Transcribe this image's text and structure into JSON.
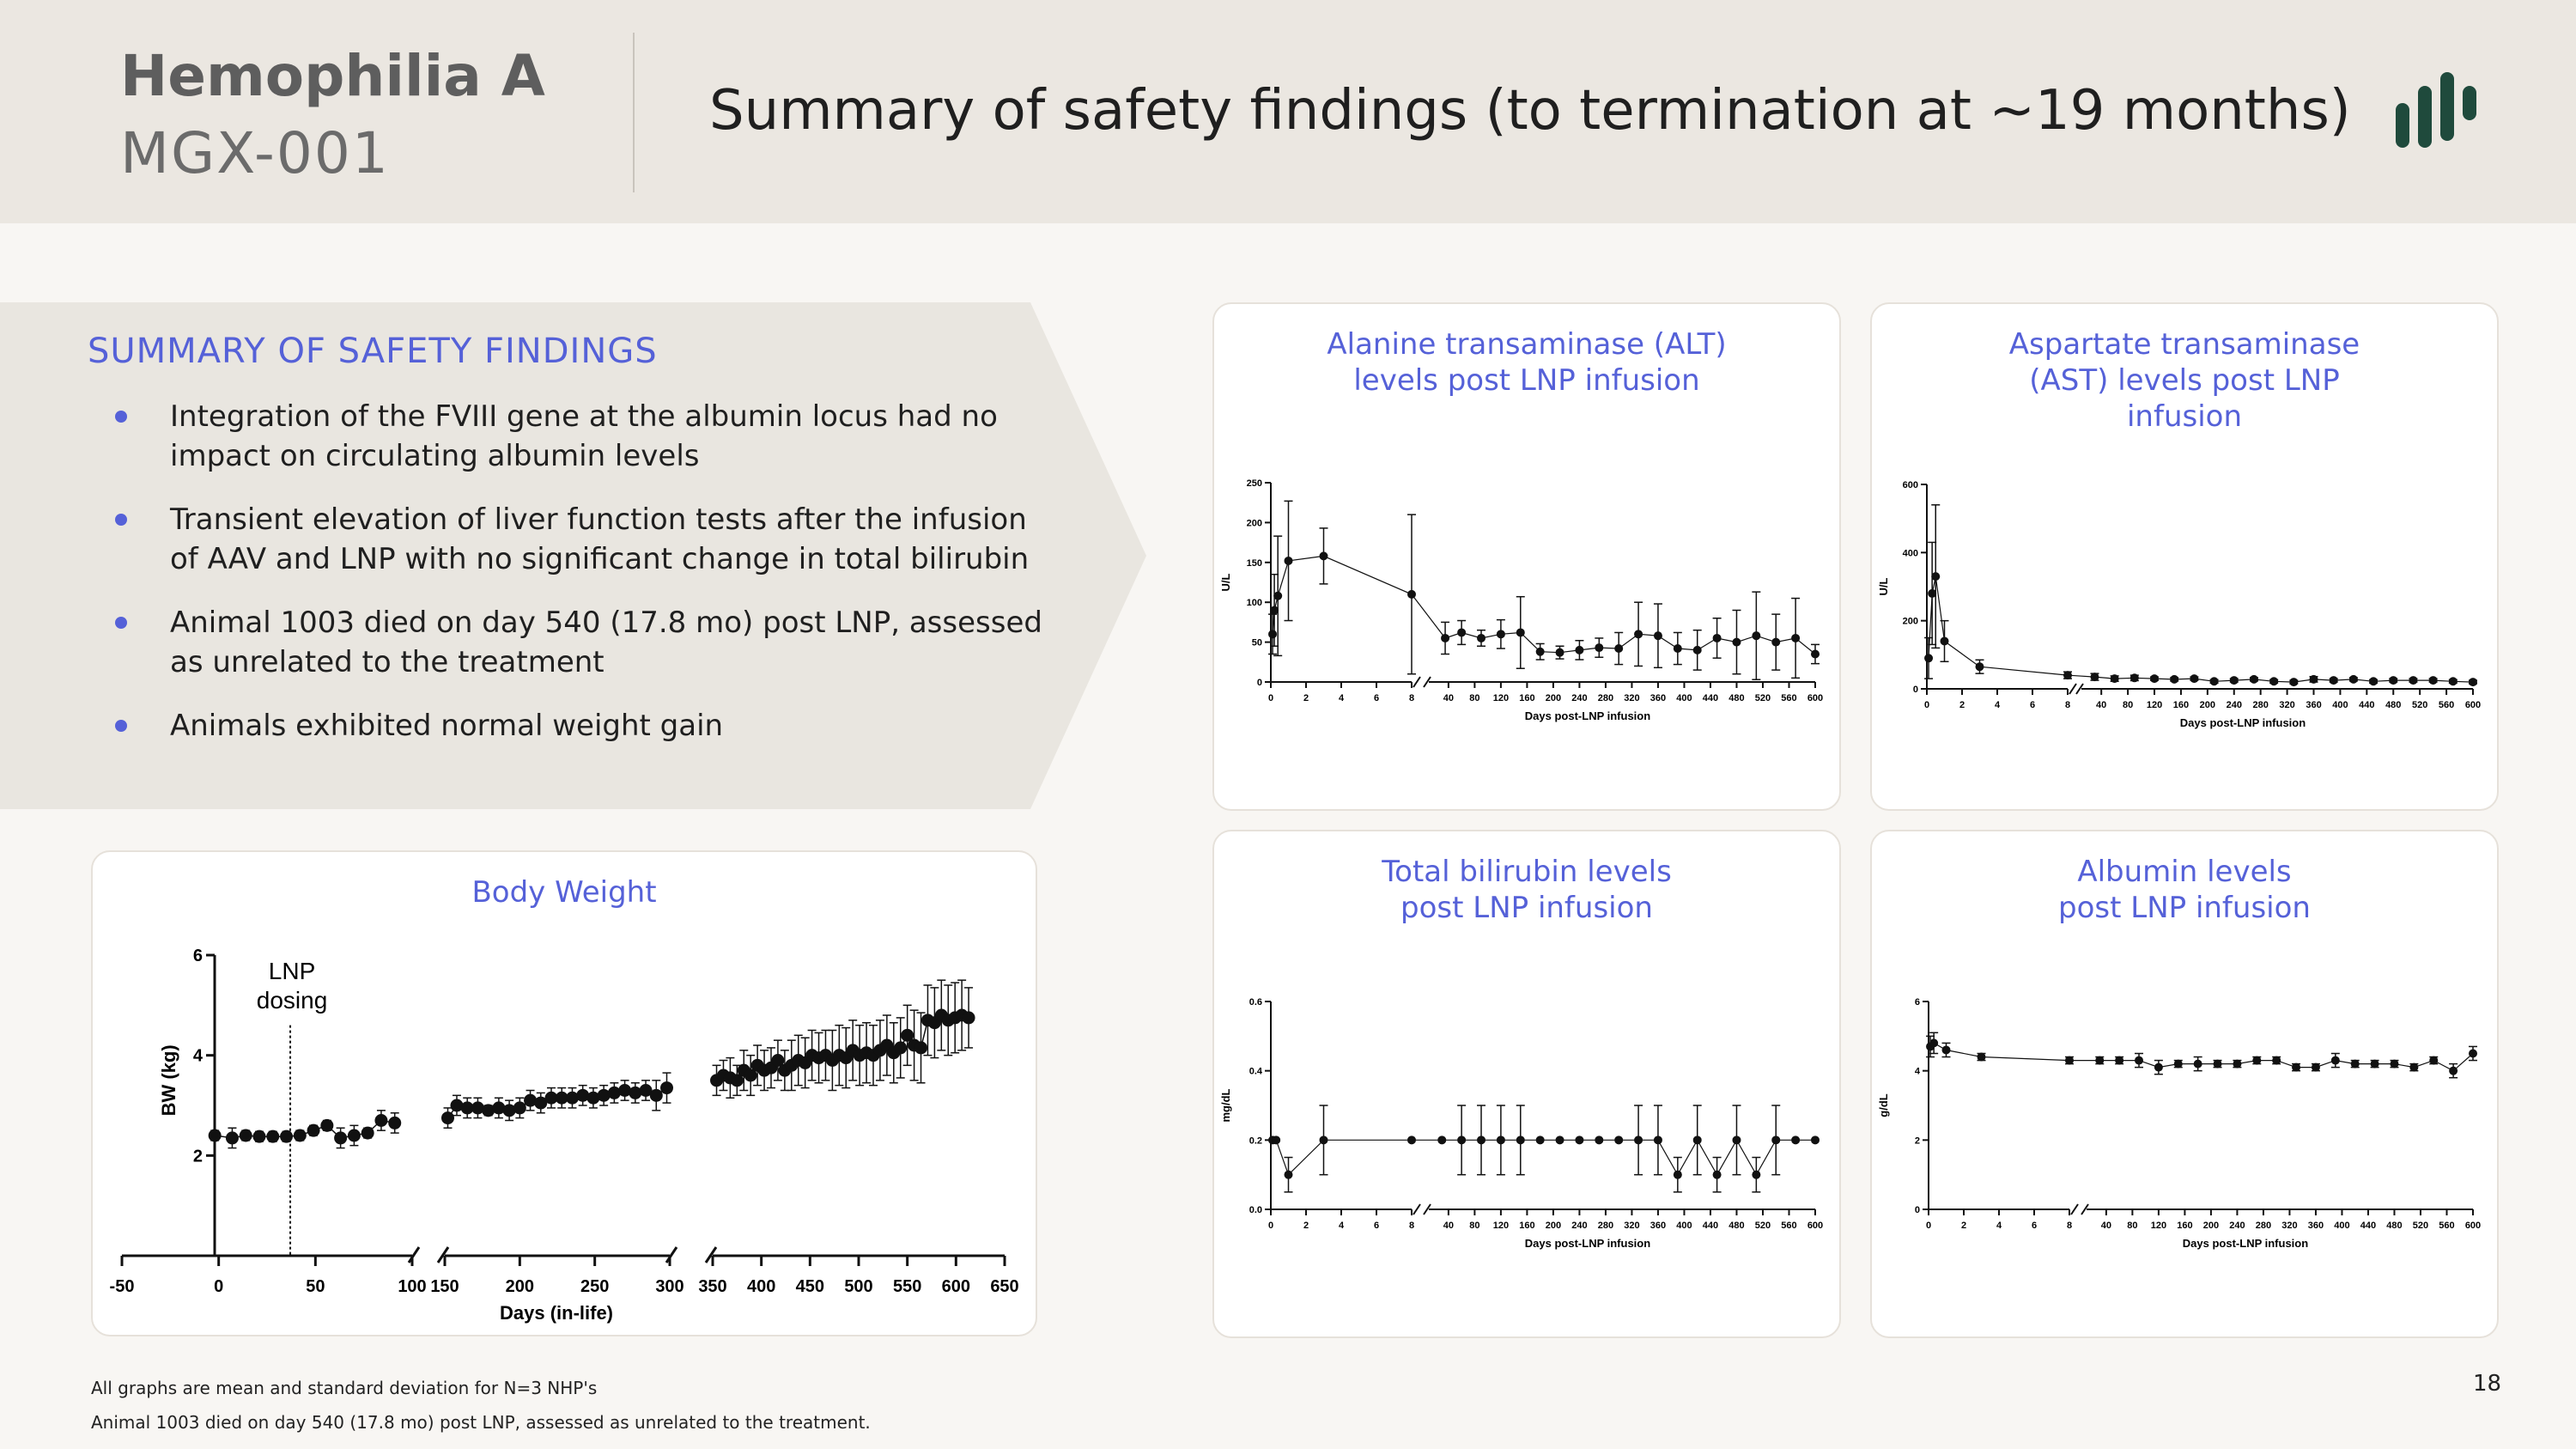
{
  "header": {
    "product": "Hemophilia A",
    "code": "MGX-001",
    "headline": "Summary of safety findings (to termination at ~19 months)"
  },
  "summary": {
    "title": "SUMMARY OF SAFETY FINDINGS",
    "bullets": [
      "Integration of the FVIII gene at the albumin locus had no impact on circulating albumin levels",
      "Transient elevation of liver function tests after the infusion of AAV and LNP with no significant change in total bilirubin",
      "Animal 1003 died on day 540 (17.8 mo) post LNP, assessed as unrelated to the treatment",
      "Animals exhibited normal weight gain"
    ]
  },
  "footer": {
    "note1": "All graphs are mean and standard deviation for N=3 NHP's",
    "note2": "Animal 1003 died on day 540 (17.8 mo) post LNP, assessed as unrelated to the treatment.",
    "page": "18"
  },
  "colors": {
    "accent": "#5561d8",
    "header_bg": "#ebe7e1",
    "panel_bg": "#e9e6e0",
    "logo": "#1f4a3c"
  },
  "chart_data": [
    {
      "id": "alt",
      "type": "line",
      "title": "Alanine transaminase (ALT) levels post LNP infusion",
      "ylabel": "U/L",
      "xlabel": "Days post-LNP infusion",
      "ylim": [
        0,
        250
      ],
      "yticks": [
        0,
        50,
        100,
        150,
        200,
        250
      ],
      "x_left_ticks": [
        0,
        2,
        4,
        6,
        8
      ],
      "x_right_ticks": [
        40,
        80,
        120,
        160,
        200,
        240,
        280,
        320,
        360,
        400,
        440,
        480,
        520,
        560,
        600
      ],
      "axis_break": true,
      "points_left": [
        [
          0.1,
          60,
          25
        ],
        [
          0.2,
          90,
          45
        ],
        [
          0.4,
          108,
          75
        ],
        [
          1,
          152,
          75
        ],
        [
          3,
          158,
          35
        ]
      ],
      "point_break": [
        8,
        110,
        100
      ],
      "points_right": [
        [
          35,
          55,
          20
        ],
        [
          60,
          62,
          15
        ],
        [
          90,
          55,
          10
        ],
        [
          120,
          60,
          18
        ],
        [
          150,
          62,
          45
        ],
        [
          180,
          38,
          10
        ],
        [
          210,
          37,
          8
        ],
        [
          240,
          40,
          12
        ],
        [
          270,
          43,
          12
        ],
        [
          300,
          42,
          20
        ],
        [
          330,
          60,
          40
        ],
        [
          360,
          58,
          40
        ],
        [
          390,
          42,
          20
        ],
        [
          420,
          40,
          25
        ],
        [
          450,
          55,
          25
        ],
        [
          480,
          50,
          40
        ],
        [
          510,
          58,
          55
        ],
        [
          540,
          50,
          35
        ],
        [
          570,
          55,
          50
        ],
        [
          600,
          35,
          12
        ]
      ]
    },
    {
      "id": "ast",
      "type": "line",
      "title": "Aspartate transaminase (AST) levels post LNP infusion",
      "ylabel": "U/L",
      "xlabel": "Days post-LNP infusion",
      "ylim": [
        0,
        600
      ],
      "yticks": [
        0,
        200,
        400,
        600
      ],
      "x_left_ticks": [
        0,
        2,
        4,
        6,
        8
      ],
      "x_right_ticks": [
        40,
        80,
        120,
        160,
        200,
        240,
        280,
        320,
        360,
        400,
        440,
        480,
        520,
        560,
        600
      ],
      "axis_break": true,
      "points_left": [
        [
          0.1,
          90,
          60
        ],
        [
          0.3,
          280,
          150
        ],
        [
          0.5,
          330,
          210
        ],
        [
          1,
          140,
          60
        ],
        [
          3,
          65,
          20
        ]
      ],
      "point_break": [
        8,
        40,
        10
      ],
      "points_right": [
        [
          30,
          35,
          10
        ],
        [
          60,
          30,
          8
        ],
        [
          90,
          32,
          8
        ],
        [
          120,
          30,
          5
        ],
        [
          150,
          28,
          5
        ],
        [
          180,
          30,
          5
        ],
        [
          210,
          22,
          5
        ],
        [
          240,
          25,
          5
        ],
        [
          270,
          28,
          5
        ],
        [
          300,
          22,
          5
        ],
        [
          330,
          20,
          5
        ],
        [
          360,
          28,
          8
        ],
        [
          390,
          25,
          5
        ],
        [
          420,
          28,
          5
        ],
        [
          450,
          22,
          5
        ],
        [
          480,
          25,
          5
        ],
        [
          510,
          25,
          5
        ],
        [
          540,
          25,
          5
        ],
        [
          570,
          22,
          5
        ],
        [
          600,
          20,
          5
        ]
      ]
    },
    {
      "id": "bili",
      "type": "line",
      "title": "Total bilirubin levels post LNP infusion",
      "ylabel": "mg/dL",
      "xlabel": "Days post-LNP infusion",
      "ylim": [
        0,
        0.6
      ],
      "yticks": [
        0.0,
        0.2,
        0.4,
        0.6
      ],
      "x_left_ticks": [
        0,
        2,
        4,
        6,
        8
      ],
      "x_right_ticks": [
        40,
        80,
        120,
        160,
        200,
        240,
        280,
        320,
        360,
        400,
        440,
        480,
        520,
        560,
        600
      ],
      "axis_break": true,
      "points_left": [
        [
          0.1,
          0.2,
          0
        ],
        [
          0.3,
          0.2,
          0
        ],
        [
          1,
          0.1,
          0.05
        ],
        [
          3,
          0.2,
          0.1
        ]
      ],
      "point_break": [
        8,
        0.2,
        0
      ],
      "points_right": [
        [
          30,
          0.2,
          0
        ],
        [
          60,
          0.2,
          0.1
        ],
        [
          90,
          0.2,
          0.1
        ],
        [
          120,
          0.2,
          0.1
        ],
        [
          150,
          0.2,
          0.1
        ],
        [
          180,
          0.2,
          0
        ],
        [
          210,
          0.2,
          0
        ],
        [
          240,
          0.2,
          0
        ],
        [
          270,
          0.2,
          0
        ],
        [
          300,
          0.2,
          0
        ],
        [
          330,
          0.2,
          0.1
        ],
        [
          360,
          0.2,
          0.1
        ],
        [
          390,
          0.1,
          0.05
        ],
        [
          420,
          0.2,
          0.1
        ],
        [
          450,
          0.1,
          0.05
        ],
        [
          480,
          0.2,
          0.1
        ],
        [
          510,
          0.1,
          0.05
        ],
        [
          540,
          0.2,
          0.1
        ],
        [
          570,
          0.2,
          0
        ],
        [
          600,
          0.2,
          0
        ]
      ]
    },
    {
      "id": "alb",
      "type": "line",
      "title": "Albumin levels post LNP infusion",
      "ylabel": "g/dL",
      "xlabel": "Days post-LNP infusion",
      "ylim": [
        0,
        6
      ],
      "yticks": [
        0,
        2,
        4,
        6
      ],
      "x_left_ticks": [
        0,
        2,
        4,
        6,
        8
      ],
      "x_right_ticks": [
        40,
        80,
        120,
        160,
        200,
        240,
        280,
        320,
        360,
        400,
        440,
        480,
        520,
        560,
        600
      ],
      "axis_break": true,
      "points_left": [
        [
          0.1,
          4.7,
          0.3
        ],
        [
          0.3,
          4.8,
          0.3
        ],
        [
          1,
          4.6,
          0.2
        ],
        [
          3,
          4.4,
          0.1
        ]
      ],
      "point_break": [
        8,
        4.3,
        0.1
      ],
      "points_right": [
        [
          30,
          4.3,
          0.1
        ],
        [
          60,
          4.3,
          0.1
        ],
        [
          90,
          4.3,
          0.2
        ],
        [
          120,
          4.1,
          0.2
        ],
        [
          150,
          4.2,
          0.1
        ],
        [
          180,
          4.2,
          0.2
        ],
        [
          210,
          4.2,
          0.1
        ],
        [
          240,
          4.2,
          0.1
        ],
        [
          270,
          4.3,
          0.1
        ],
        [
          300,
          4.3,
          0.1
        ],
        [
          330,
          4.1,
          0.1
        ],
        [
          360,
          4.1,
          0.1
        ],
        [
          390,
          4.3,
          0.2
        ],
        [
          420,
          4.2,
          0.1
        ],
        [
          450,
          4.2,
          0.1
        ],
        [
          480,
          4.2,
          0.1
        ],
        [
          510,
          4.1,
          0.1
        ],
        [
          540,
          4.3,
          0.1
        ],
        [
          570,
          4.0,
          0.2
        ],
        [
          600,
          4.5,
          0.2
        ]
      ]
    },
    {
      "id": "bw",
      "type": "line",
      "title": "Body Weight",
      "ylabel": "BW (kg)",
      "xlabel": "Days (in-life)",
      "ylim": [
        0,
        6
      ],
      "yticks": [
        2,
        4,
        6
      ],
      "annotation": "LNP dosing",
      "annotation_x": 37,
      "segments": [
        {
          "xlim": [
            -50,
            100
          ],
          "ticks": [
            -50,
            0,
            50,
            100
          ]
        },
        {
          "xlim": [
            150,
            300
          ],
          "ticks": [
            150,
            200,
            250,
            300
          ]
        },
        {
          "xlim": [
            350,
            650
          ],
          "ticks": [
            350,
            400,
            450,
            500,
            550,
            600,
            650
          ]
        }
      ],
      "points": [
        [
          -2,
          2.4,
          0.1
        ],
        [
          7,
          2.35,
          0.2
        ],
        [
          14,
          2.4,
          0.1
        ],
        [
          21,
          2.38,
          0.1
        ],
        [
          28,
          2.38,
          0.1
        ],
        [
          35,
          2.38,
          0.1
        ],
        [
          42,
          2.4,
          0.1
        ],
        [
          49,
          2.5,
          0.1
        ],
        [
          56,
          2.6,
          0.1
        ],
        [
          63,
          2.35,
          0.2
        ],
        [
          70,
          2.4,
          0.2
        ],
        [
          77,
          2.45,
          0.1
        ],
        [
          84,
          2.7,
          0.2
        ],
        [
          91,
          2.65,
          0.2
        ],
        [
          152,
          2.75,
          0.2
        ],
        [
          158,
          3.0,
          0.2
        ],
        [
          165,
          2.95,
          0.2
        ],
        [
          172,
          2.95,
          0.2
        ],
        [
          179,
          2.9,
          0.1
        ],
        [
          186,
          2.95,
          0.2
        ],
        [
          193,
          2.9,
          0.2
        ],
        [
          200,
          2.95,
          0.2
        ],
        [
          207,
          3.1,
          0.2
        ],
        [
          214,
          3.05,
          0.2
        ],
        [
          221,
          3.15,
          0.2
        ],
        [
          228,
          3.15,
          0.2
        ],
        [
          235,
          3.15,
          0.2
        ],
        [
          242,
          3.2,
          0.2
        ],
        [
          249,
          3.15,
          0.2
        ],
        [
          256,
          3.2,
          0.2
        ],
        [
          263,
          3.25,
          0.2
        ],
        [
          270,
          3.3,
          0.2
        ],
        [
          277,
          3.25,
          0.2
        ],
        [
          284,
          3.3,
          0.2
        ],
        [
          291,
          3.2,
          0.3
        ],
        [
          298,
          3.35,
          0.3
        ],
        [
          354,
          3.5,
          0.3
        ],
        [
          361,
          3.6,
          0.3
        ],
        [
          368,
          3.55,
          0.4
        ],
        [
          375,
          3.5,
          0.3
        ],
        [
          382,
          3.7,
          0.4
        ],
        [
          389,
          3.6,
          0.4
        ],
        [
          396,
          3.8,
          0.4
        ],
        [
          403,
          3.7,
          0.4
        ],
        [
          410,
          3.75,
          0.4
        ],
        [
          417,
          3.9,
          0.4
        ],
        [
          424,
          3.7,
          0.4
        ],
        [
          431,
          3.8,
          0.5
        ],
        [
          438,
          3.9,
          0.5
        ],
        [
          445,
          3.85,
          0.5
        ],
        [
          452,
          4.0,
          0.5
        ],
        [
          459,
          3.95,
          0.5
        ],
        [
          466,
          4.0,
          0.5
        ],
        [
          473,
          3.9,
          0.6
        ],
        [
          480,
          4.0,
          0.6
        ],
        [
          487,
          3.95,
          0.6
        ],
        [
          494,
          4.1,
          0.6
        ],
        [
          501,
          4.0,
          0.6
        ],
        [
          508,
          4.05,
          0.6
        ],
        [
          515,
          4.0,
          0.6
        ],
        [
          522,
          4.1,
          0.6
        ],
        [
          529,
          4.2,
          0.6
        ],
        [
          536,
          4.05,
          0.6
        ],
        [
          543,
          4.15,
          0.6
        ],
        [
          550,
          4.4,
          0.6
        ],
        [
          557,
          4.2,
          0.7
        ],
        [
          564,
          4.15,
          0.7
        ],
        [
          571,
          4.7,
          0.7
        ],
        [
          578,
          4.65,
          0.7
        ],
        [
          585,
          4.8,
          0.7
        ],
        [
          592,
          4.7,
          0.7
        ],
        [
          599,
          4.75,
          0.7
        ],
        [
          606,
          4.8,
          0.7
        ],
        [
          613,
          4.75,
          0.6
        ]
      ]
    }
  ]
}
